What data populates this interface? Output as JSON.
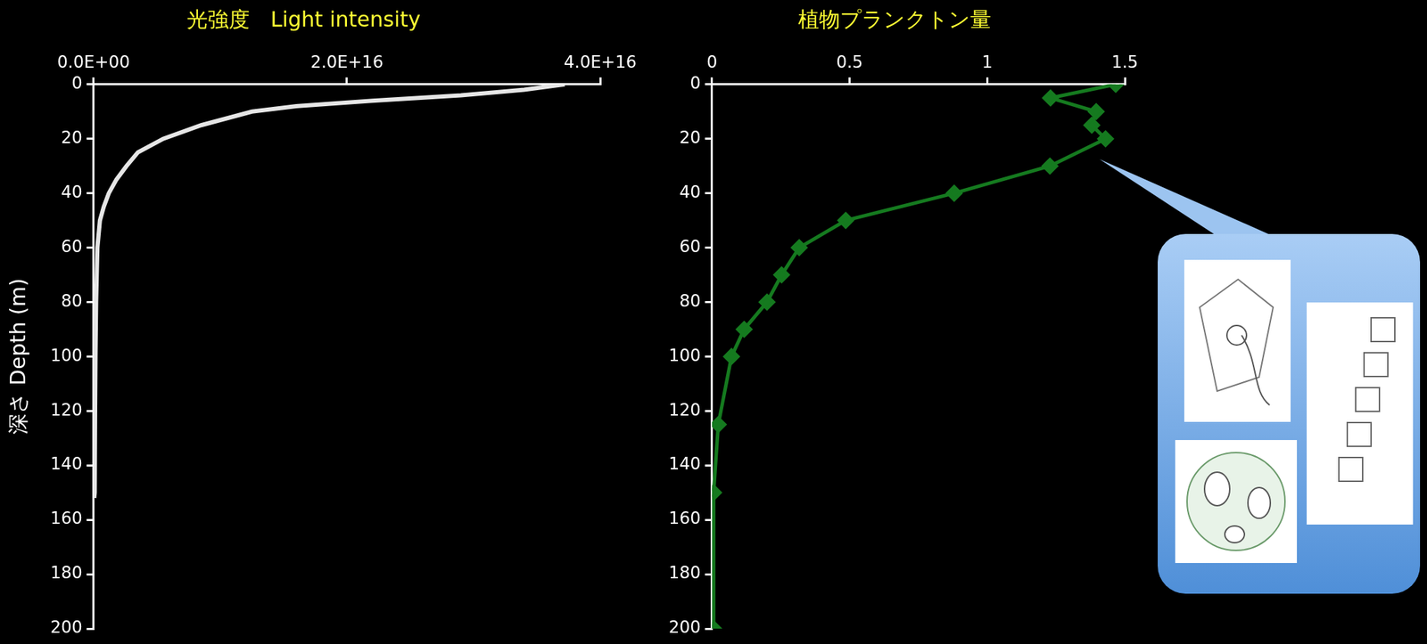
{
  "chart_data": [
    {
      "type": "line",
      "title": "光強度　Light intensity",
      "ylabel": "深さ Depth (m)",
      "x": [
        3.72e+16,
        3.4e+16,
        2.9e+16,
        2.2e+16,
        1.6e+16,
        1.25e+16,
        8500000000000000.0,
        5500000000000000.0,
        3500000000000000.0,
        2600000000000000.0,
        1800000000000000.0,
        1200000000000000.0,
        800000000000000.0,
        500000000000000.0,
        300000000000000.0,
        200000000000000.0,
        150000000000000.0,
        120000000000000.0,
        100000000000000.0,
        80000000000000.0,
        50000000000000.0
      ],
      "y": [
        0,
        2,
        4,
        6,
        8,
        10,
        15,
        20,
        25,
        30,
        35,
        40,
        45,
        50,
        60,
        80,
        100,
        120,
        140,
        150,
        152
      ],
      "color": "#e6e6e6",
      "marker": "none",
      "xlim": [
        0,
        4e+16
      ],
      "xticks": [
        {
          "value": 0,
          "label": "0.0E+00"
        },
        {
          "value": 2e+16,
          "label": "2.0E+16"
        },
        {
          "value": 4e+16,
          "label": "4.0E+16"
        }
      ],
      "ylim": [
        0,
        200
      ],
      "yticks": [
        0,
        20,
        40,
        60,
        80,
        100,
        120,
        140,
        160,
        180,
        200
      ],
      "grid": false
    },
    {
      "type": "line",
      "title": "植物プランクトン量",
      "x": [
        1.467,
        1.23,
        1.396,
        1.38,
        1.43,
        1.228,
        0.88,
        0.486,
        0.317,
        0.253,
        0.2,
        0.117,
        0.071,
        0.023,
        0.006,
        0.006
      ],
      "y": [
        0,
        5,
        10,
        15,
        20,
        30,
        40,
        50,
        60,
        70,
        80,
        90,
        100,
        125,
        150,
        200
      ],
      "color": "#157a1f",
      "marker": "diamond",
      "xlim": [
        0,
        1.5
      ],
      "xticks": [
        0,
        0.5,
        1,
        1.5
      ],
      "ylim": [
        0,
        200
      ],
      "yticks": [
        0,
        20,
        40,
        60,
        80,
        100,
        120,
        140,
        160,
        180,
        200
      ],
      "grid": false
    }
  ]
}
